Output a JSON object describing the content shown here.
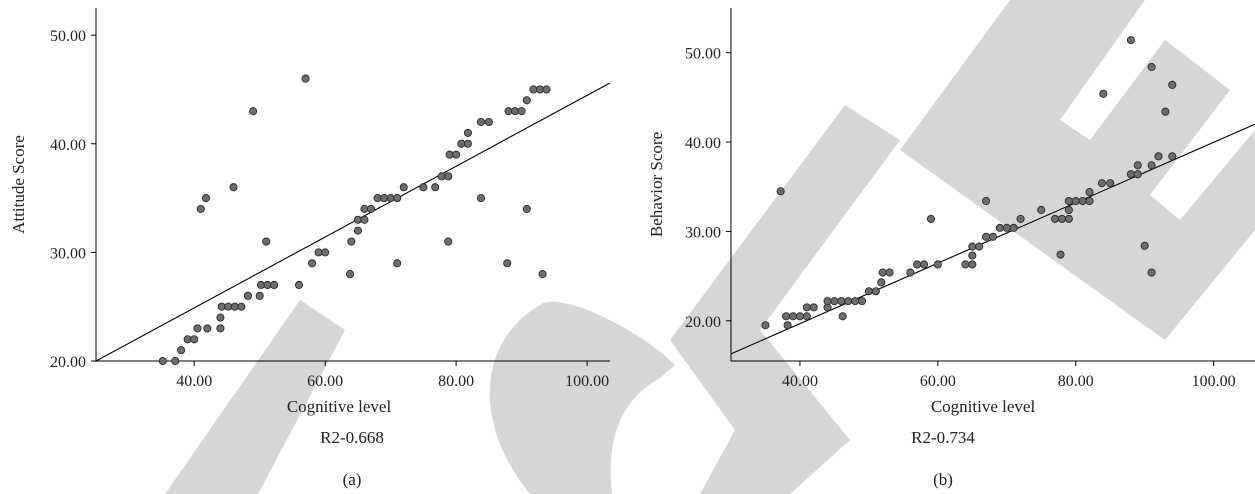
{
  "watermark": {
    "color": "#d6d6d6"
  },
  "chart_data": [
    {
      "type": "scatter",
      "panel_label": "(a)",
      "xlabel": "Cognitive level",
      "ylabel": "Attitude Score",
      "r2_text": "R2-0.668",
      "xlim": [
        25,
        103.5
      ],
      "ylim": [
        20,
        52.5
      ],
      "x_ticks": [
        "40.00",
        "60.00",
        "80.00",
        "100.00"
      ],
      "x_tick_values": [
        40,
        60,
        80,
        100
      ],
      "y_ticks": [
        "20.00",
        "30.00",
        "40.00",
        "50.00"
      ],
      "y_tick_values": [
        20,
        30,
        40,
        50
      ],
      "marker_color": "#6e6e6e",
      "fit_line": [
        [
          25,
          20
        ],
        [
          103.5,
          45.6
        ]
      ],
      "points": [
        [
          35.2,
          20
        ],
        [
          37.1,
          20
        ],
        [
          38,
          21
        ],
        [
          39,
          22
        ],
        [
          40,
          22
        ],
        [
          40.5,
          23
        ],
        [
          41,
          34
        ],
        [
          41.8,
          35
        ],
        [
          42,
          23
        ],
        [
          44,
          23
        ],
        [
          44,
          24
        ],
        [
          44.2,
          25
        ],
        [
          45.2,
          25
        ],
        [
          46,
          36
        ],
        [
          46.2,
          25
        ],
        [
          47.2,
          25
        ],
        [
          48.2,
          26
        ],
        [
          49,
          43
        ],
        [
          50,
          26
        ],
        [
          50.2,
          27
        ],
        [
          51,
          31
        ],
        [
          51.2,
          27
        ],
        [
          52.2,
          27
        ],
        [
          56,
          27
        ],
        [
          57,
          46
        ],
        [
          58,
          29
        ],
        [
          59,
          30
        ],
        [
          60,
          30
        ],
        [
          63.8,
          28
        ],
        [
          64,
          31
        ],
        [
          65,
          32
        ],
        [
          65,
          33
        ],
        [
          66,
          33
        ],
        [
          66,
          34
        ],
        [
          67,
          34
        ],
        [
          68,
          35
        ],
        [
          69,
          35
        ],
        [
          70,
          35
        ],
        [
          71,
          29
        ],
        [
          71,
          35
        ],
        [
          72,
          36
        ],
        [
          75,
          36
        ],
        [
          76.8,
          36
        ],
        [
          77.8,
          37
        ],
        [
          78.8,
          31
        ],
        [
          78.8,
          37
        ],
        [
          79,
          39
        ],
        [
          80,
          39
        ],
        [
          80.8,
          40
        ],
        [
          81.8,
          40
        ],
        [
          81.8,
          41
        ],
        [
          83.8,
          35
        ],
        [
          83.8,
          42
        ],
        [
          85,
          42
        ],
        [
          87.8,
          29
        ],
        [
          88,
          43
        ],
        [
          89,
          43
        ],
        [
          90,
          43
        ],
        [
          90.8,
          34
        ],
        [
          90.8,
          44
        ],
        [
          91.8,
          45
        ],
        [
          92.8,
          45
        ],
        [
          93.2,
          28
        ],
        [
          93.8,
          45
        ]
      ]
    },
    {
      "type": "scatter",
      "panel_label": "(b)",
      "xlabel": "Cognitive level",
      "ylabel": "Behavior Score",
      "r2_text": "R2-0.734",
      "xlim": [
        30,
        106
      ],
      "ylim": [
        15.5,
        55
      ],
      "x_ticks": [
        "40.00",
        "60.00",
        "80.00",
        "100.00"
      ],
      "x_tick_values": [
        40,
        60,
        80,
        100
      ],
      "y_ticks": [
        "20.00",
        "30.00",
        "40.00",
        "50.00"
      ],
      "y_tick_values": [
        20,
        30,
        40,
        50
      ],
      "marker_color": "#6e6e6e",
      "fit_line": [
        [
          30,
          16.3
        ],
        [
          106,
          42
        ]
      ],
      "points": [
        [
          35,
          19.5
        ],
        [
          37.2,
          34.5
        ],
        [
          38,
          20.5
        ],
        [
          38.2,
          19.5
        ],
        [
          39,
          20.5
        ],
        [
          40,
          20.5
        ],
        [
          41,
          20.5
        ],
        [
          41,
          21.5
        ],
        [
          42,
          21.5
        ],
        [
          44,
          21.5
        ],
        [
          44,
          22.2
        ],
        [
          45,
          22.2
        ],
        [
          46,
          22.2
        ],
        [
          46.2,
          20.5
        ],
        [
          47,
          22.2
        ],
        [
          48,
          22.2
        ],
        [
          49,
          22.2
        ],
        [
          50,
          23.3
        ],
        [
          51,
          23.3
        ],
        [
          51.8,
          24.3
        ],
        [
          52,
          25.4
        ],
        [
          53,
          25.4
        ],
        [
          56,
          25.4
        ],
        [
          57,
          26.3
        ],
        [
          58,
          26.3
        ],
        [
          59,
          31.4
        ],
        [
          60,
          26.3
        ],
        [
          64,
          26.3
        ],
        [
          65,
          26.3
        ],
        [
          65,
          27.3
        ],
        [
          65,
          28.3
        ],
        [
          66,
          28.3
        ],
        [
          67,
          29.4
        ],
        [
          67,
          33.4
        ],
        [
          68,
          29.4
        ],
        [
          69,
          30.4
        ],
        [
          70,
          30.4
        ],
        [
          71,
          30.4
        ],
        [
          72,
          31.4
        ],
        [
          75,
          32.4
        ],
        [
          77,
          31.4
        ],
        [
          77.8,
          27.4
        ],
        [
          78,
          31.4
        ],
        [
          79,
          31.4
        ],
        [
          79,
          32.4
        ],
        [
          79,
          33.4
        ],
        [
          80,
          33.4
        ],
        [
          81,
          33.4
        ],
        [
          82,
          33.4
        ],
        [
          82,
          34.4
        ],
        [
          83.8,
          35.4
        ],
        [
          84,
          45.4
        ],
        [
          85,
          35.4
        ],
        [
          88,
          36.4
        ],
        [
          88,
          51.4
        ],
        [
          89,
          36.4
        ],
        [
          89,
          37.4
        ],
        [
          90,
          28.4
        ],
        [
          91,
          25.4
        ],
        [
          91,
          37.4
        ],
        [
          91,
          48.4
        ],
        [
          92,
          38.4
        ],
        [
          93,
          43.4
        ],
        [
          94,
          38.4
        ],
        [
          94,
          46.4
        ]
      ]
    }
  ]
}
